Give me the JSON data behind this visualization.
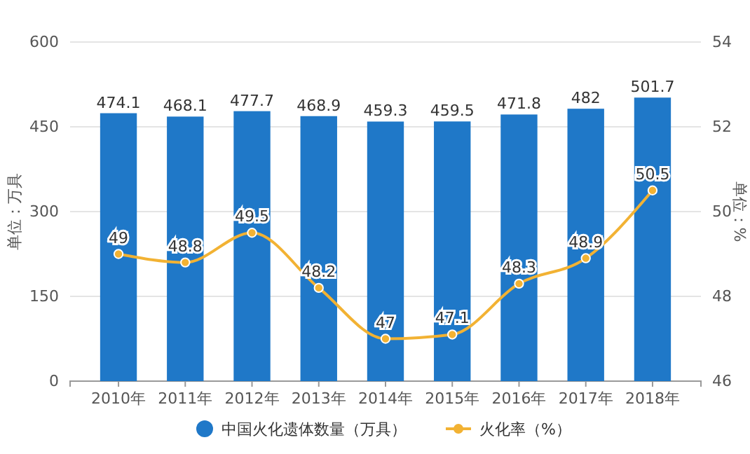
{
  "chart_data": {
    "type": "bar",
    "categories": [
      "2010年",
      "2011年",
      "2012年",
      "2013年",
      "2014年",
      "2015年",
      "2016年",
      "2017年",
      "2018年"
    ],
    "series": [
      {
        "name": "中国火化遗体数量（万具）",
        "color": "#1f78c8",
        "values": [
          474.1,
          468.1,
          477.7,
          468.9,
          459.3,
          459.5,
          471.8,
          482,
          501.7
        ]
      },
      {
        "name": "火化率（%）",
        "type": "line",
        "axis": "y2",
        "color": "#f2b233",
        "marker": "circle",
        "values": [
          49,
          48.8,
          49.5,
          48.2,
          47,
          47.1,
          48.3,
          48.9,
          50.5
        ]
      }
    ],
    "ylabel": "单位：万具",
    "y2label": "单位：%",
    "ylim": [
      0,
      600
    ],
    "yticks": [
      0,
      150,
      300,
      450,
      600
    ],
    "y2lim": [
      46,
      54
    ],
    "y2ticks": [
      46,
      48,
      50,
      52,
      54
    ],
    "data_labels": true,
    "grid": "y",
    "legend": "bottom"
  }
}
